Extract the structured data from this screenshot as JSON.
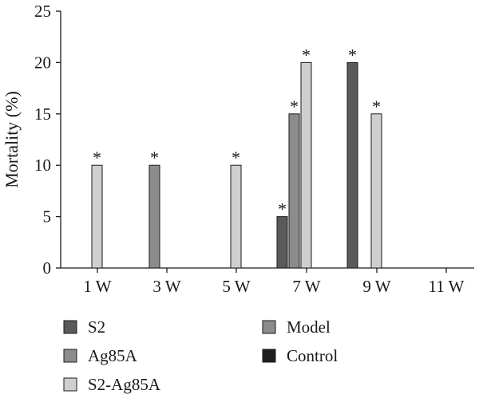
{
  "chart_data": {
    "type": "bar",
    "title": "",
    "xlabel": "",
    "ylabel": "Mortality (%)",
    "ylim": [
      0,
      25
    ],
    "yticks": [
      0,
      5,
      10,
      15,
      20,
      25
    ],
    "categories": [
      "1 W",
      "3 W",
      "5 W",
      "7 W",
      "9 W",
      "11 W"
    ],
    "series": [
      {
        "name": "S2",
        "color": "#5a5a5a",
        "values": [
          0,
          0,
          0,
          5,
          20,
          0
        ],
        "significant": [
          false,
          false,
          false,
          true,
          true,
          false
        ]
      },
      {
        "name": "Ag85A",
        "color": "#8c8c8c",
        "values": [
          0,
          10,
          0,
          15,
          0,
          0
        ],
        "significant": [
          false,
          true,
          false,
          true,
          false,
          false
        ]
      },
      {
        "name": "S2-Ag85A",
        "color": "#cfcfcf",
        "values": [
          10,
          0,
          10,
          20,
          15,
          0
        ],
        "significant": [
          true,
          false,
          true,
          true,
          true,
          false
        ]
      },
      {
        "name": "Model",
        "color": "#8c8c8c",
        "values": [
          0,
          0,
          0,
          0,
          0,
          0
        ],
        "significant": [
          false,
          false,
          false,
          false,
          false,
          false
        ]
      },
      {
        "name": "Control",
        "color": "#1e1e1e",
        "values": [
          0,
          0,
          0,
          0,
          0,
          0
        ],
        "significant": [
          false,
          false,
          false,
          false,
          false,
          false
        ]
      }
    ],
    "significance_marker": "*",
    "grid": false,
    "legend_position": "bottom"
  }
}
